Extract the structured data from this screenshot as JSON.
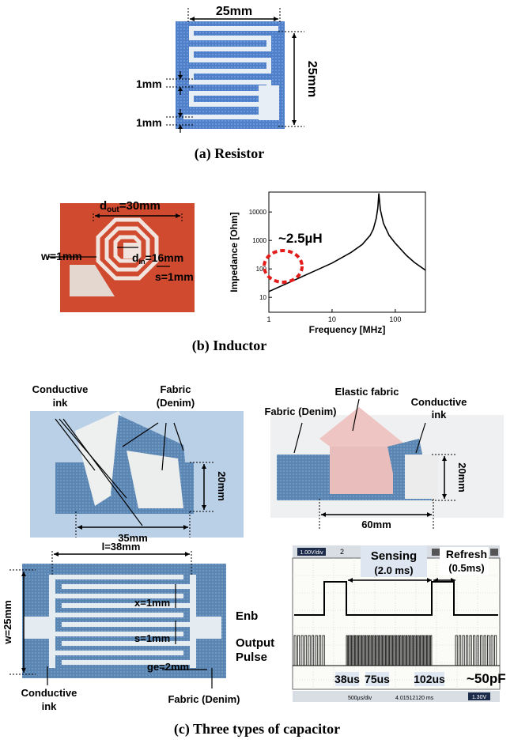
{
  "resistor": {
    "width_label": "25mm",
    "height_label": "25mm",
    "gap_label": "1mm",
    "gap_label2": "1mm",
    "caption": "(a) Resistor"
  },
  "inductor": {
    "dout_main": "d",
    "dout_sub": "out",
    "dout_val": "=30mm",
    "din_main": "d",
    "din_sub": "in",
    "din_val": "=16mm",
    "w_label": "w=1mm",
    "s_label": "s=1mm",
    "caption": "(b) Inductor"
  },
  "chart_data": {
    "type": "line",
    "xlabel": "Frequency [MHz]",
    "ylabel": "Impedance [Ohm]",
    "xscale": "log",
    "yscale": "log",
    "xlim": [
      1,
      300
    ],
    "ylim": [
      3,
      50000
    ],
    "x_ticks": [
      "1",
      "10",
      "100"
    ],
    "y_ticks": [
      "10",
      "100",
      "1000",
      "10000"
    ],
    "annotation": "~2.5µH",
    "x": [
      1,
      2,
      5,
      10,
      20,
      30,
      40,
      45,
      50,
      53,
      55,
      58,
      65,
      80,
      100,
      150,
      200,
      300
    ],
    "y": [
      16,
      32,
      80,
      160,
      380,
      720,
      1500,
      2500,
      6000,
      14000,
      45000,
      12000,
      4000,
      1500,
      800,
      300,
      170,
      90
    ]
  },
  "cap1": {
    "conductive_ink": [
      "Conductive",
      "ink"
    ],
    "fabric_denim": [
      "Fabric",
      "(Denim)"
    ],
    "width_label": "35mm",
    "height_label": "20mm"
  },
  "cap2": {
    "elastic_fabric": "Elastic fabric",
    "fabric_denim": "Fabric (Denim)",
    "conductive_ink": [
      "Conductive",
      "ink"
    ],
    "width_label": "60mm",
    "height_label": "20mm"
  },
  "cap3": {
    "l_label": "l=38mm",
    "w_label": "w=25mm",
    "x_label": "x=1mm",
    "s_label": "s=1mm",
    "ge_label": "ge=2mm",
    "conductive_ink": [
      "Conductive",
      "ink"
    ],
    "fabric_denim": "Fabric (Denim)"
  },
  "scope": {
    "sensing": "Sensing",
    "sensing_time": "(2.0 ms)",
    "refresh": "Refresh",
    "refresh_time": "(0.5ms)",
    "enb": "Enb",
    "output": [
      "Output",
      "Pulse"
    ],
    "t1": "38us",
    "t2": "75us",
    "t3": "102us",
    "cap_value": "~50pF",
    "top_ch1": "1.00V/div",
    "top_ch2": "2",
    "timebase": "500µs/div",
    "position": "4.01512120 ms",
    "trig": "1.30V"
  },
  "caption_c": "(c) Three types of capacitor"
}
